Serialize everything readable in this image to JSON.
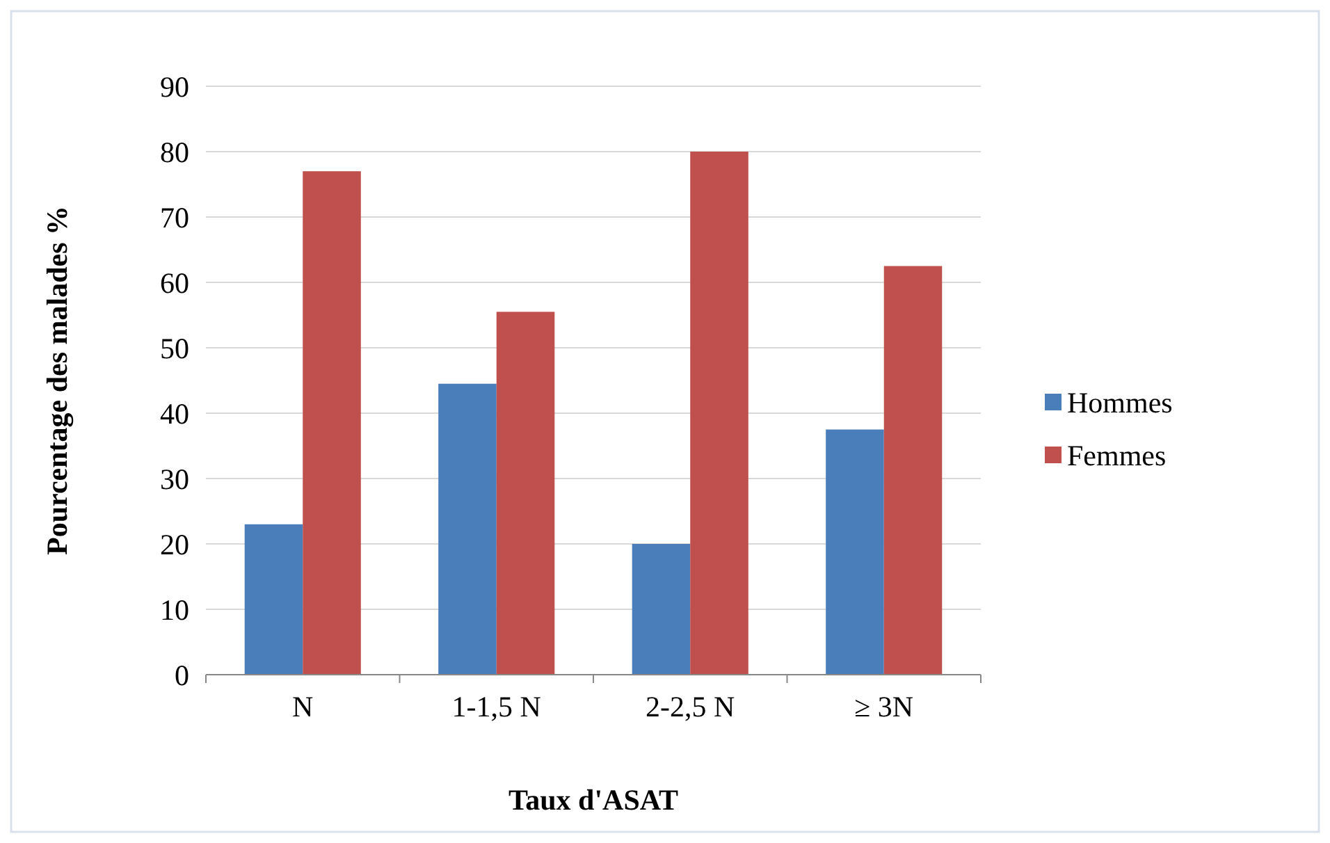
{
  "chart_data": {
    "type": "bar",
    "xlabel": "Taux d'ASAT",
    "ylabel": "Pourcentage  des malades %",
    "categories": [
      "N",
      "1-1,5 N",
      "2-2,5 N",
      "≥ 3N"
    ],
    "series": [
      {
        "name": "Hommes",
        "color": "#4a7ebb",
        "values": [
          23,
          44.5,
          20,
          37.5
        ]
      },
      {
        "name": "Femmes",
        "color": "#c0504d",
        "values": [
          77,
          55.5,
          80,
          62.5
        ]
      }
    ],
    "ylim": [
      0,
      90
    ],
    "yticks": [
      0,
      10,
      20,
      30,
      40,
      50,
      60,
      70,
      80,
      90
    ],
    "grid": "y",
    "legend": "right"
  }
}
